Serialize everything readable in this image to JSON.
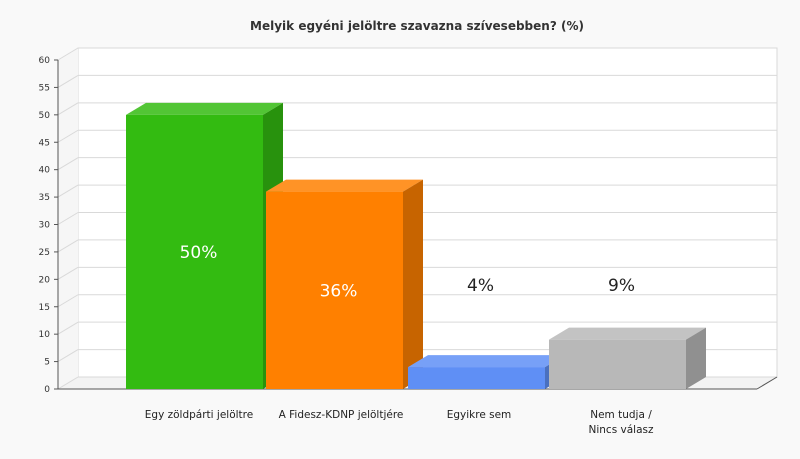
{
  "chart_data": {
    "type": "bar",
    "title": "Melyik egyéni jelöltre szavazna szívesebben? (%)",
    "xlabel": "",
    "ylabel": "",
    "ylim": [
      0,
      60
    ],
    "yticks": [
      0,
      5,
      10,
      15,
      20,
      25,
      30,
      35,
      40,
      45,
      50,
      55,
      60
    ],
    "grid": true,
    "legend": "none",
    "categories": [
      [
        "Egy zöldpárti jelöltre"
      ],
      [
        "A Fidesz-KDNP jelöltjére"
      ],
      [
        "Egyikre sem"
      ],
      [
        "Nem tudja /",
        "Nincs válasz"
      ]
    ],
    "values": [
      50,
      36,
      4,
      9
    ],
    "data_labels": [
      "50%",
      "36%",
      "4%",
      "9%"
    ],
    "colors": [
      "#33bb11",
      "#ff8000",
      "#5f8ff5",
      "#b8b8b8"
    ]
  }
}
